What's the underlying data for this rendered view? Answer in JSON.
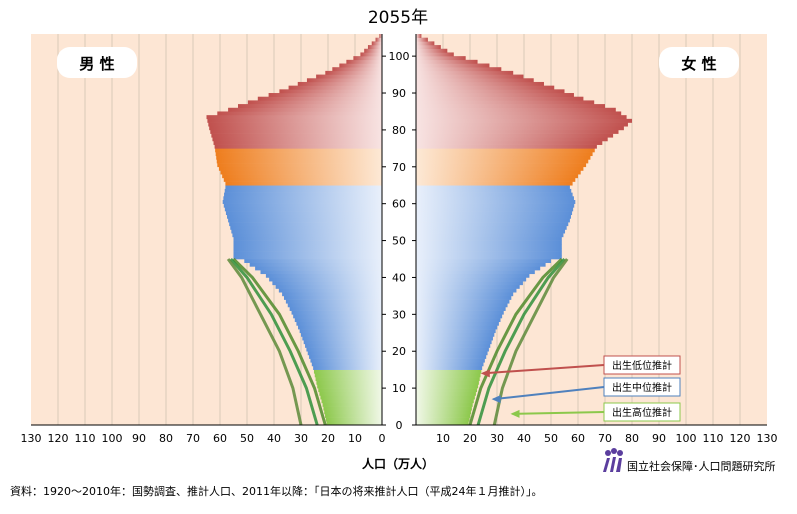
{
  "chart_data": {
    "type": "bar",
    "title": "2055年",
    "xlabel": "人口（万人）",
    "xlim": [
      0,
      130
    ],
    "x_ticks": [
      130,
      120,
      110,
      100,
      90,
      80,
      70,
      60,
      50,
      40,
      30,
      20,
      10,
      0,
      10,
      20,
      30,
      40,
      50,
      60,
      70,
      80,
      90,
      100,
      110,
      120,
      130
    ],
    "age_ticks": [
      0,
      10,
      20,
      30,
      40,
      50,
      60,
      70,
      80,
      90,
      100
    ],
    "age_range": [
      0,
      105
    ],
    "male_label": "男 性",
    "female_label": "女 性",
    "age_bands": [
      {
        "from": 0,
        "to": 14,
        "color": "#8cc84b"
      },
      {
        "from": 15,
        "to": 64,
        "color": "#5b8fd8"
      },
      {
        "from": 65,
        "to": 74,
        "color": "#ee7d1d"
      },
      {
        "from": 75,
        "to": 105,
        "color": "#c0504d"
      }
    ],
    "male_middle": [
      {
        "age": 0,
        "value": 20.5
      },
      {
        "age": 5,
        "value": 22
      },
      {
        "age": 10,
        "value": 24
      },
      {
        "age": 15,
        "value": 25.5
      },
      {
        "age": 20,
        "value": 28
      },
      {
        "age": 25,
        "value": 30.5
      },
      {
        "age": 30,
        "value": 33.5
      },
      {
        "age": 35,
        "value": 37
      },
      {
        "age": 40,
        "value": 43
      },
      {
        "age": 44,
        "value": 51
      },
      {
        "age": 45,
        "value": 55
      },
      {
        "age": 50,
        "value": 55
      },
      {
        "age": 55,
        "value": 57
      },
      {
        "age": 60,
        "value": 59
      },
      {
        "age": 64,
        "value": 58
      },
      {
        "age": 65,
        "value": 58
      },
      {
        "age": 70,
        "value": 61
      },
      {
        "age": 75,
        "value": 62
      },
      {
        "age": 80,
        "value": 64
      },
      {
        "age": 83,
        "value": 65
      },
      {
        "age": 85,
        "value": 57
      },
      {
        "age": 88,
        "value": 46
      },
      {
        "age": 90,
        "value": 38
      },
      {
        "age": 95,
        "value": 21
      },
      {
        "age": 100,
        "value": 8
      },
      {
        "age": 105,
        "value": 1
      }
    ],
    "female_middle": [
      {
        "age": 0,
        "value": 19.5
      },
      {
        "age": 5,
        "value": 21
      },
      {
        "age": 10,
        "value": 23
      },
      {
        "age": 15,
        "value": 24.5
      },
      {
        "age": 20,
        "value": 27
      },
      {
        "age": 25,
        "value": 29.5
      },
      {
        "age": 30,
        "value": 32.5
      },
      {
        "age": 35,
        "value": 36
      },
      {
        "age": 40,
        "value": 42
      },
      {
        "age": 44,
        "value": 50
      },
      {
        "age": 45,
        "value": 54
      },
      {
        "age": 50,
        "value": 54
      },
      {
        "age": 55,
        "value": 57
      },
      {
        "age": 60,
        "value": 59
      },
      {
        "age": 64,
        "value": 57
      },
      {
        "age": 65,
        "value": 58
      },
      {
        "age": 70,
        "value": 63
      },
      {
        "age": 75,
        "value": 67
      },
      {
        "age": 80,
        "value": 77
      },
      {
        "age": 82,
        "value": 80
      },
      {
        "age": 85,
        "value": 74
      },
      {
        "age": 88,
        "value": 62
      },
      {
        "age": 90,
        "value": 55
      },
      {
        "age": 95,
        "value": 36
      },
      {
        "age": 100,
        "value": 14
      },
      {
        "age": 105,
        "value": 2
      }
    ],
    "projection_lines": [
      {
        "name": "出生低位推計",
        "male": [
          {
            "age": 0,
            "value": 21
          },
          {
            "age": 10,
            "value": 25
          },
          {
            "age": 20,
            "value": 31
          },
          {
            "age": 30,
            "value": 38
          },
          {
            "age": 40,
            "value": 48
          },
          {
            "age": 45,
            "value": 55
          }
        ],
        "female": [
          {
            "age": 0,
            "value": 20
          },
          {
            "age": 10,
            "value": 24
          },
          {
            "age": 20,
            "value": 30
          },
          {
            "age": 30,
            "value": 37
          },
          {
            "age": 40,
            "value": 47
          },
          {
            "age": 45,
            "value": 54
          }
        ]
      },
      {
        "name": "出生中位推計",
        "male": [
          {
            "age": 0,
            "value": 24
          },
          {
            "age": 10,
            "value": 28
          },
          {
            "age": 20,
            "value": 34
          },
          {
            "age": 30,
            "value": 41
          },
          {
            "age": 40,
            "value": 50
          },
          {
            "age": 45,
            "value": 56
          }
        ],
        "female": [
          {
            "age": 0,
            "value": 23
          },
          {
            "age": 10,
            "value": 27
          },
          {
            "age": 20,
            "value": 33
          },
          {
            "age": 30,
            "value": 40
          },
          {
            "age": 40,
            "value": 49
          },
          {
            "age": 45,
            "value": 55
          }
        ]
      },
      {
        "name": "出生高位推計",
        "male": [
          {
            "age": 0,
            "value": 30
          },
          {
            "age": 10,
            "value": 33
          },
          {
            "age": 20,
            "value": 38
          },
          {
            "age": 30,
            "value": 45
          },
          {
            "age": 40,
            "value": 52
          },
          {
            "age": 45,
            "value": 57
          }
        ],
        "female": [
          {
            "age": 0,
            "value": 29
          },
          {
            "age": 10,
            "value": 32
          },
          {
            "age": 20,
            "value": 37
          },
          {
            "age": 30,
            "value": 44
          },
          {
            "age": 40,
            "value": 51
          },
          {
            "age": 45,
            "value": 56
          }
        ]
      }
    ],
    "annotations": [
      {
        "text": "出生低位推計",
        "age": 14,
        "value": 24,
        "border": "#c0504d"
      },
      {
        "text": "出生中位推計",
        "age": 7,
        "value": 28,
        "border": "#4f81bd"
      },
      {
        "text": "出生高位推計",
        "age": 3,
        "value": 35,
        "border": "#8cc84b"
      }
    ],
    "source": "資料：1920～2010年：国勢調査、推計人口、2011年以降：「日本の将来推計人口（平成24年１月推計）」。",
    "organization": "国立社会保障･人口問題研究所",
    "colors": {
      "panel_bg": "#fde6d4",
      "grid": "#d9c9b8"
    },
    "legend": "none",
    "grid": true
  }
}
